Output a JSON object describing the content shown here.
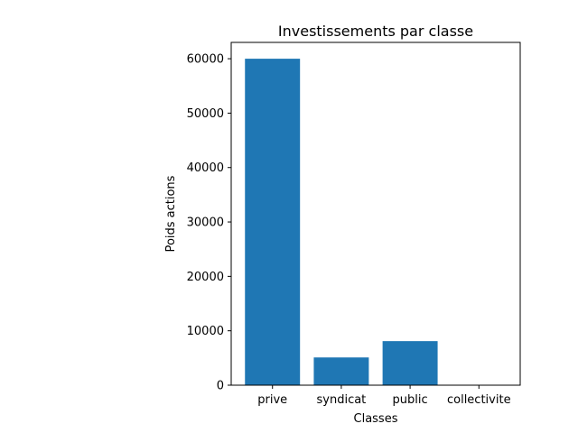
{
  "chart_data": {
    "type": "bar",
    "title": "Investissements par classe",
    "xlabel": "Classes",
    "ylabel": "Poids actions",
    "categories": [
      "prive",
      "syndicat",
      "public",
      "collectivite"
    ],
    "values": [
      60000,
      5100,
      8100,
      0
    ],
    "ylim": [
      0,
      63000
    ],
    "yticks": [
      0,
      10000,
      20000,
      30000,
      40000,
      50000,
      60000
    ],
    "bar_color": "#1f77b4",
    "grid": false,
    "legend": "none"
  }
}
